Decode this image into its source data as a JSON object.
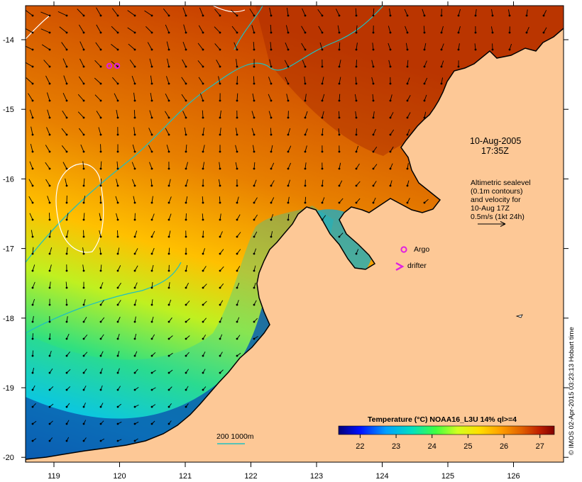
{
  "map": {
    "date": "10-Aug-2005",
    "time": "17:35Z",
    "altimetry_note": [
      "Altimetric sealevel",
      "(0.1m contours)",
      "and velocity for",
      "10-Aug 17Z",
      "0.5m/s (1kt 24h)"
    ],
    "legend": {
      "argo_label": "Argo",
      "drifter_label": "drifter",
      "argo_color": "#e020e0",
      "drifter_color": "#e020e0"
    },
    "scale_bar_label": "200  1000m",
    "colorbar": {
      "title": "Temperature (°C) NOAA16_L3U 14% ql>=4",
      "ticks": [
        "22",
        "23",
        "24",
        "25",
        "26",
        "27"
      ],
      "range": [
        21.4,
        27.4
      ],
      "colors": [
        "#00007a",
        "#0010ff",
        "#00a0ff",
        "#00e0c0",
        "#40ff40",
        "#d0ff20",
        "#ffe000",
        "#ffa000",
        "#e06000",
        "#c02000",
        "#800000"
      ]
    },
    "axes": {
      "lon_labels": [
        "119",
        "120",
        "121",
        "122",
        "123",
        "124",
        "125",
        "126"
      ],
      "lat_labels": [
        "-14",
        "-15",
        "-16",
        "-17",
        "-18",
        "-19",
        "-20"
      ]
    },
    "credit": "© IMOS 02-Apr-2015 03:23:13 Hobart time",
    "colors": {
      "land": "#fdc896",
      "coastline": "#000000",
      "isobath_200m": "#20c0c0",
      "sealevel_contour": "#ffffff",
      "arrow": "#000000"
    }
  }
}
